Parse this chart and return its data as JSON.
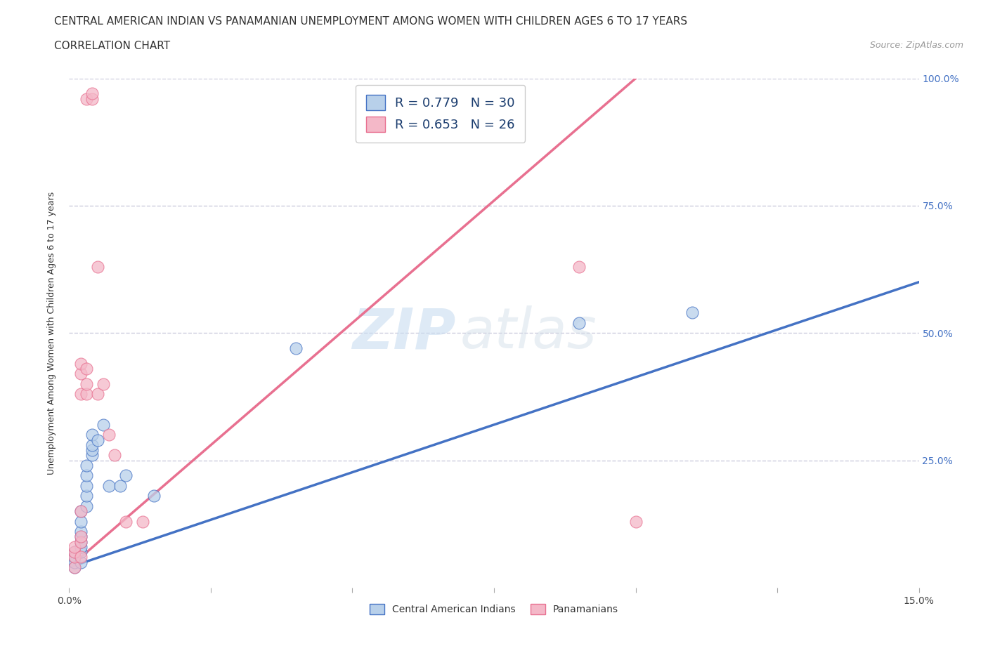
{
  "title_line1": "CENTRAL AMERICAN INDIAN VS PANAMANIAN UNEMPLOYMENT AMONG WOMEN WITH CHILDREN AGES 6 TO 17 YEARS",
  "title_line2": "CORRELATION CHART",
  "source_text": "Source: ZipAtlas.com",
  "ylabel": "Unemployment Among Women with Children Ages 6 to 17 years",
  "xlim": [
    0.0,
    0.15
  ],
  "ylim": [
    0.0,
    1.0
  ],
  "xticks": [
    0.0,
    0.025,
    0.05,
    0.075,
    0.1,
    0.125,
    0.15
  ],
  "xtick_labels": [
    "0.0%",
    "",
    "",
    "",
    "",
    "",
    "15.0%"
  ],
  "yticks": [
    0.0,
    0.25,
    0.5,
    0.75,
    1.0
  ],
  "ytick_labels_right": [
    "",
    "25.0%",
    "50.0%",
    "75.0%",
    "100.0%"
  ],
  "blue_scatter": [
    [
      0.001,
      0.04
    ],
    [
      0.001,
      0.05
    ],
    [
      0.001,
      0.06
    ],
    [
      0.001,
      0.07
    ],
    [
      0.002,
      0.05
    ],
    [
      0.002,
      0.07
    ],
    [
      0.002,
      0.08
    ],
    [
      0.002,
      0.09
    ],
    [
      0.002,
      0.1
    ],
    [
      0.002,
      0.11
    ],
    [
      0.002,
      0.13
    ],
    [
      0.002,
      0.15
    ],
    [
      0.003,
      0.16
    ],
    [
      0.003,
      0.18
    ],
    [
      0.003,
      0.2
    ],
    [
      0.003,
      0.22
    ],
    [
      0.003,
      0.24
    ],
    [
      0.004,
      0.26
    ],
    [
      0.004,
      0.27
    ],
    [
      0.004,
      0.28
    ],
    [
      0.004,
      0.3
    ],
    [
      0.005,
      0.29
    ],
    [
      0.006,
      0.32
    ],
    [
      0.007,
      0.2
    ],
    [
      0.009,
      0.2
    ],
    [
      0.01,
      0.22
    ],
    [
      0.015,
      0.18
    ],
    [
      0.04,
      0.47
    ],
    [
      0.09,
      0.52
    ],
    [
      0.11,
      0.54
    ]
  ],
  "pink_scatter": [
    [
      0.001,
      0.04
    ],
    [
      0.001,
      0.06
    ],
    [
      0.001,
      0.07
    ],
    [
      0.001,
      0.08
    ],
    [
      0.002,
      0.06
    ],
    [
      0.002,
      0.09
    ],
    [
      0.002,
      0.1
    ],
    [
      0.002,
      0.15
    ],
    [
      0.002,
      0.38
    ],
    [
      0.002,
      0.42
    ],
    [
      0.002,
      0.44
    ],
    [
      0.003,
      0.38
    ],
    [
      0.003,
      0.4
    ],
    [
      0.003,
      0.43
    ],
    [
      0.003,
      0.96
    ],
    [
      0.004,
      0.96
    ],
    [
      0.004,
      0.97
    ],
    [
      0.005,
      0.63
    ],
    [
      0.005,
      0.38
    ],
    [
      0.006,
      0.4
    ],
    [
      0.007,
      0.3
    ],
    [
      0.008,
      0.26
    ],
    [
      0.01,
      0.13
    ],
    [
      0.013,
      0.13
    ],
    [
      0.09,
      0.63
    ],
    [
      0.1,
      0.13
    ]
  ],
  "blue_R": 0.779,
  "blue_N": 30,
  "pink_R": 0.653,
  "pink_N": 26,
  "blue_color": "#b8d0ea",
  "pink_color": "#f4b8c8",
  "blue_line_color": "#4472c4",
  "pink_line_color": "#e87090",
  "blue_trend_x0": 0.0,
  "blue_trend_y0": 0.04,
  "blue_trend_x1": 0.15,
  "blue_trend_y1": 0.6,
  "pink_trend_x0": 0.0,
  "pink_trend_y0": 0.04,
  "pink_trend_x1": 0.1,
  "pink_trend_y1": 1.0,
  "watermark_top": "ZIP",
  "watermark_bot": "atlas",
  "background_color": "#ffffff",
  "grid_color": "#ccccdd",
  "title_fontsize": 11,
  "axis_label_fontsize": 9,
  "tick_fontsize": 10,
  "legend_fontsize": 13
}
